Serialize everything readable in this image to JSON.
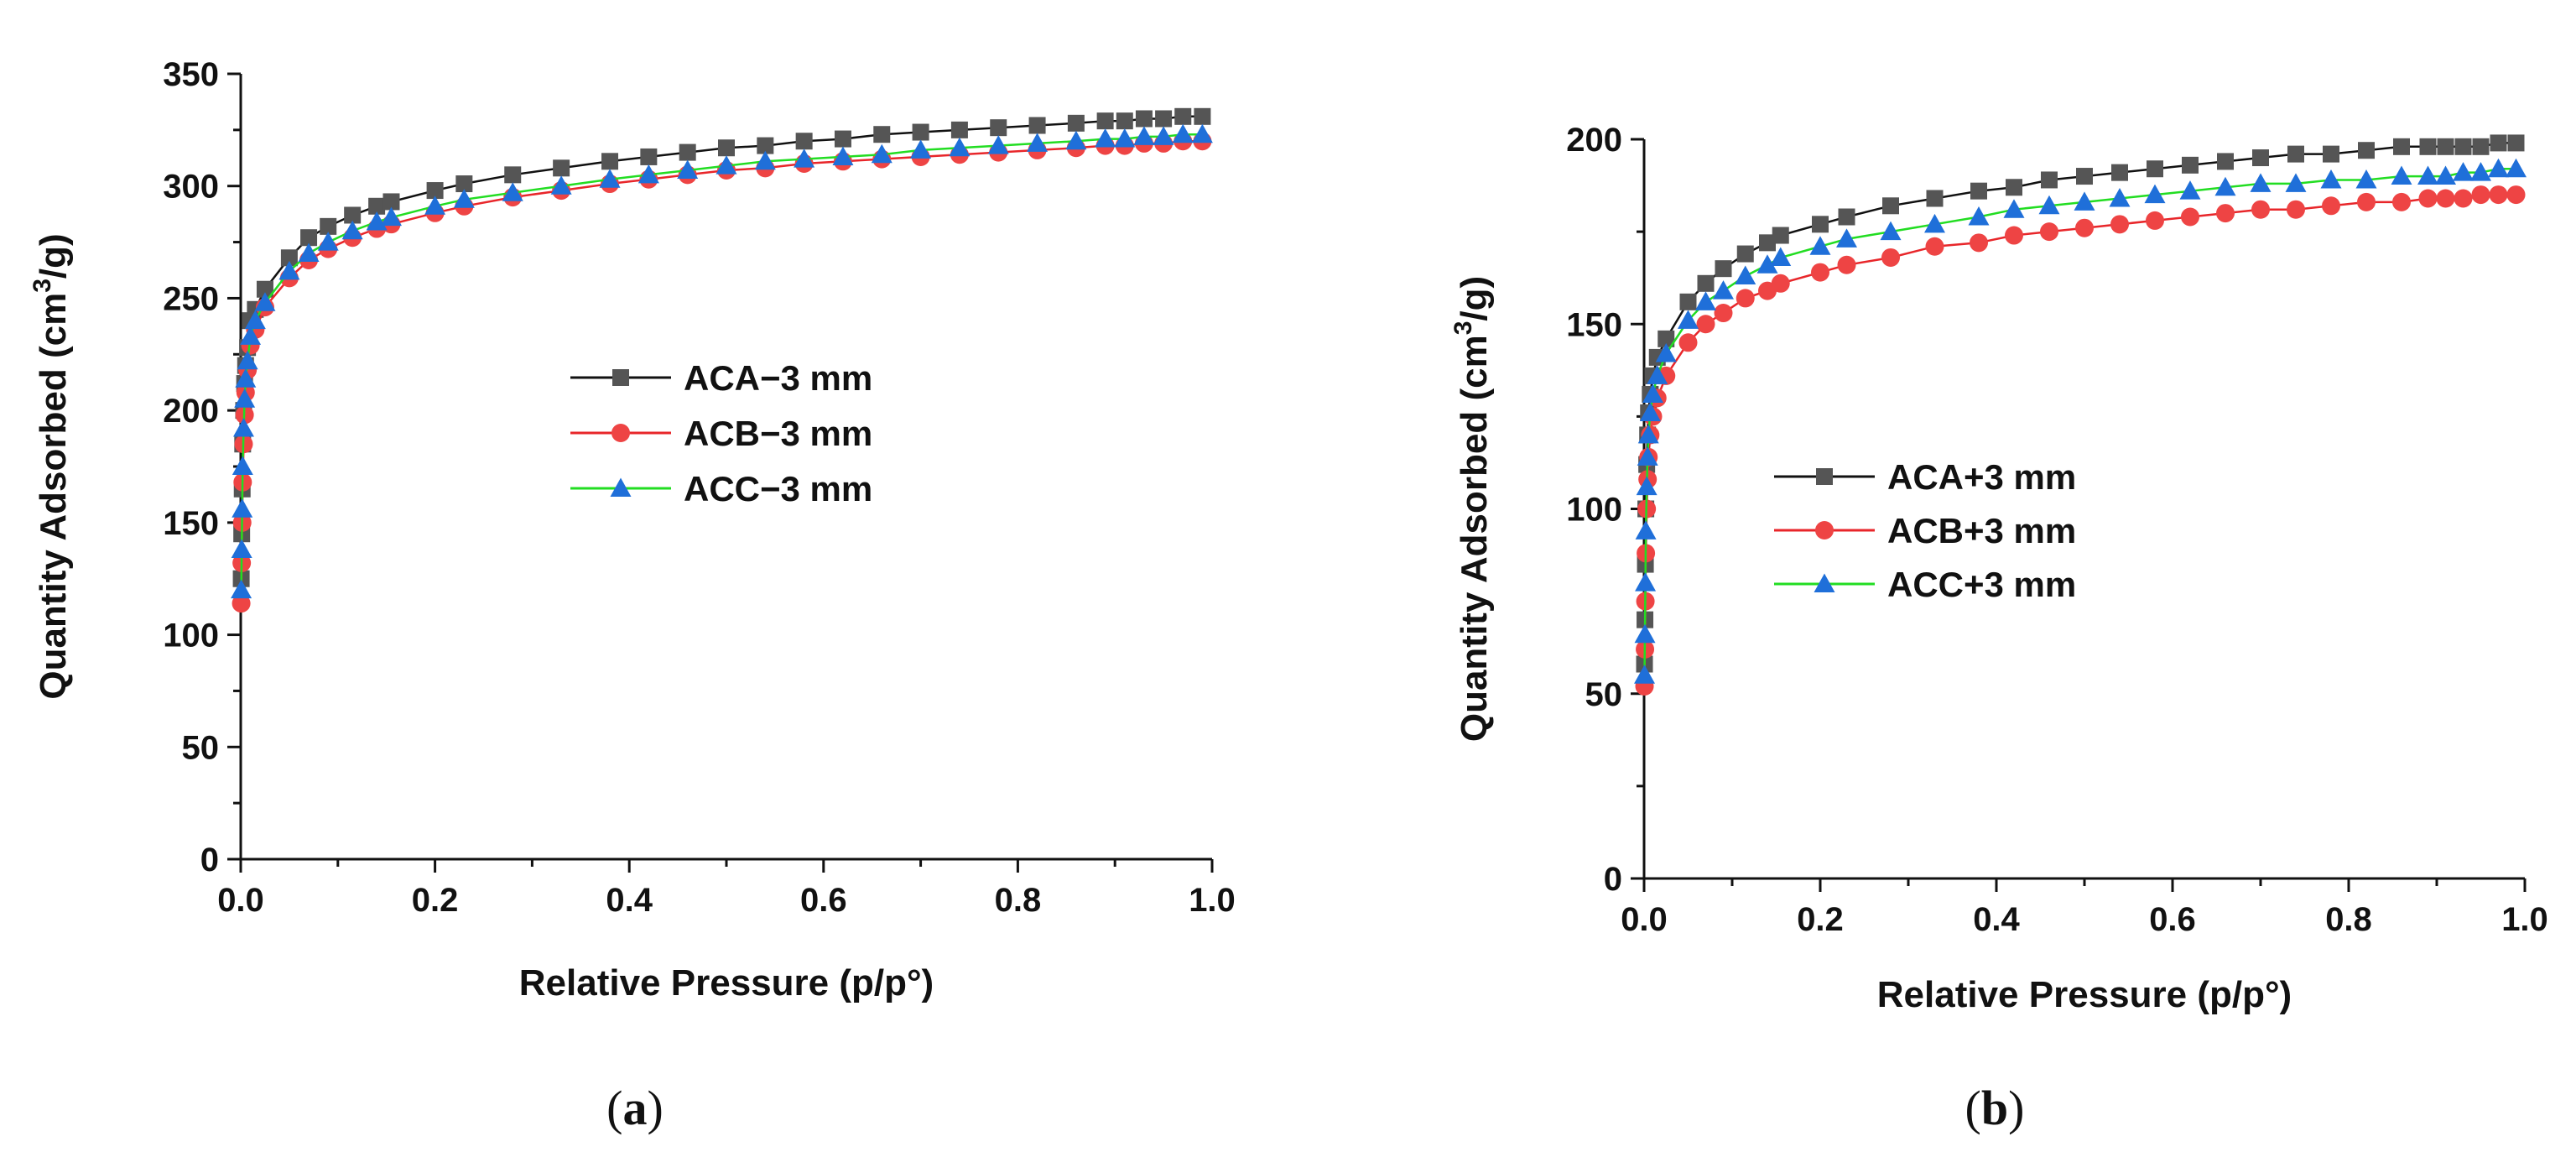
{
  "chart_data": [
    {
      "type": "line",
      "panel_label": "a",
      "xlabel": "Relative Pressure (p/p°)",
      "ylabel_prefix": "Quantity Adsorbed (cm",
      "ylabel_sup": "3",
      "ylabel_suffix": "/g)",
      "xlim": [
        0,
        1.0
      ],
      "ylim": [
        0,
        350
      ],
      "xticks": [
        0.0,
        0.2,
        0.4,
        0.6,
        0.8,
        1.0
      ],
      "xtick_labels": [
        "0.0",
        "0.2",
        "0.4",
        "0.6",
        "0.8",
        "1.0"
      ],
      "yticks": [
        0,
        50,
        100,
        150,
        200,
        250,
        300,
        350
      ],
      "ytick_labels": [
        "0",
        "50",
        "100",
        "150",
        "200",
        "250",
        "300",
        "350"
      ],
      "legend": "center",
      "series": [
        {
          "name": "ACA−3 mm",
          "marker": "square",
          "line_color": "#111111",
          "marker_color": "#555555",
          "x": [
            0.0005,
            0.001,
            0.0015,
            0.002,
            0.003,
            0.004,
            0.005,
            0.007,
            0.01,
            0.015,
            0.025,
            0.05,
            0.07,
            0.09,
            0.115,
            0.14,
            0.155,
            0.2,
            0.23,
            0.28,
            0.33,
            0.38,
            0.42,
            0.46,
            0.5,
            0.54,
            0.58,
            0.62,
            0.66,
            0.7,
            0.74,
            0.78,
            0.82,
            0.86,
            0.89,
            0.91,
            0.93,
            0.95,
            0.97,
            0.99
          ],
          "y": [
            125,
            145,
            165,
            185,
            200,
            212,
            220,
            228,
            240,
            245,
            254,
            268,
            277,
            282,
            287,
            291,
            293,
            298,
            301,
            305,
            308,
            311,
            313,
            315,
            317,
            318,
            320,
            321,
            323,
            324,
            325,
            326,
            327,
            328,
            329,
            329,
            330,
            330,
            331,
            331
          ]
        },
        {
          "name": "ACB−3 mm",
          "marker": "circle",
          "line_color": "#e8262a",
          "marker_color": "#ee4444",
          "x": [
            0.0005,
            0.001,
            0.0015,
            0.002,
            0.003,
            0.004,
            0.005,
            0.007,
            0.01,
            0.015,
            0.025,
            0.05,
            0.07,
            0.09,
            0.115,
            0.14,
            0.155,
            0.2,
            0.23,
            0.28,
            0.33,
            0.38,
            0.42,
            0.46,
            0.5,
            0.54,
            0.58,
            0.62,
            0.66,
            0.7,
            0.74,
            0.78,
            0.82,
            0.86,
            0.89,
            0.91,
            0.93,
            0.95,
            0.97,
            0.99
          ],
          "y": [
            114,
            132,
            150,
            168,
            185,
            198,
            208,
            218,
            229,
            236,
            246,
            259,
            267,
            272,
            277,
            281,
            283,
            288,
            291,
            295,
            298,
            301,
            303,
            305,
            307,
            308,
            310,
            311,
            312,
            313,
            314,
            315,
            316,
            317,
            318,
            318,
            319,
            319,
            320,
            320
          ]
        },
        {
          "name": "ACC−3 mm",
          "marker": "triangle",
          "line_color": "#22dd22",
          "marker_color": "#1f6fd9",
          "x": [
            0.0005,
            0.001,
            0.0015,
            0.002,
            0.003,
            0.004,
            0.005,
            0.007,
            0.01,
            0.015,
            0.025,
            0.05,
            0.07,
            0.09,
            0.115,
            0.14,
            0.155,
            0.2,
            0.23,
            0.28,
            0.33,
            0.38,
            0.42,
            0.46,
            0.5,
            0.54,
            0.58,
            0.62,
            0.66,
            0.7,
            0.74,
            0.78,
            0.82,
            0.86,
            0.89,
            0.91,
            0.93,
            0.95,
            0.97,
            0.99
          ],
          "y": [
            120,
            138,
            156,
            175,
            192,
            205,
            214,
            222,
            233,
            240,
            248,
            262,
            270,
            275,
            280,
            284,
            286,
            291,
            294,
            297,
            300,
            303,
            305,
            307,
            309,
            311,
            312,
            313,
            314,
            316,
            317,
            318,
            319,
            320,
            321,
            321,
            322,
            322,
            323,
            323
          ]
        }
      ]
    },
    {
      "type": "line",
      "panel_label": "b",
      "xlabel": "Relative Pressure (p/p°)",
      "ylabel_prefix": "Quantity Adsorbed (cm",
      "ylabel_sup": "3",
      "ylabel_suffix": "/g)",
      "xlim": [
        0,
        1.0
      ],
      "ylim": [
        0,
        200
      ],
      "xticks": [
        0.0,
        0.2,
        0.4,
        0.6,
        0.8,
        1.0
      ],
      "xtick_labels": [
        "0.0",
        "0.2",
        "0.4",
        "0.6",
        "0.8",
        "1.0"
      ],
      "yticks": [
        0,
        50,
        100,
        150,
        200
      ],
      "ytick_labels": [
        "0",
        "50",
        "100",
        "150",
        "200"
      ],
      "legend": "center-left",
      "series": [
        {
          "name": "ACA+3 mm",
          "marker": "square",
          "line_color": "#111111",
          "marker_color": "#555555",
          "x": [
            0.0005,
            0.001,
            0.0015,
            0.002,
            0.003,
            0.004,
            0.005,
            0.007,
            0.01,
            0.015,
            0.025,
            0.05,
            0.07,
            0.09,
            0.115,
            0.14,
            0.155,
            0.2,
            0.23,
            0.28,
            0.33,
            0.38,
            0.42,
            0.46,
            0.5,
            0.54,
            0.58,
            0.62,
            0.66,
            0.7,
            0.74,
            0.78,
            0.82,
            0.86,
            0.89,
            0.91,
            0.93,
            0.95,
            0.97,
            0.99
          ],
          "y": [
            58,
            70,
            85,
            100,
            112,
            120,
            126,
            131,
            136,
            141,
            146,
            156,
            161,
            165,
            169,
            172,
            174,
            177,
            179,
            182,
            184,
            186,
            187,
            189,
            190,
            191,
            192,
            193,
            194,
            195,
            196,
            196,
            197,
            198,
            198,
            198,
            198,
            198,
            199,
            199
          ]
        },
        {
          "name": "ACB+3 mm",
          "marker": "circle",
          "line_color": "#e8262a",
          "marker_color": "#ee4444",
          "x": [
            0.0005,
            0.001,
            0.0015,
            0.002,
            0.003,
            0.004,
            0.005,
            0.007,
            0.01,
            0.015,
            0.025,
            0.05,
            0.07,
            0.09,
            0.115,
            0.14,
            0.155,
            0.2,
            0.23,
            0.28,
            0.33,
            0.38,
            0.42,
            0.46,
            0.5,
            0.54,
            0.58,
            0.62,
            0.66,
            0.7,
            0.74,
            0.78,
            0.82,
            0.86,
            0.89,
            0.91,
            0.93,
            0.95,
            0.97,
            0.99
          ],
          "y": [
            52,
            62,
            75,
            88,
            100,
            108,
            114,
            120,
            125,
            130,
            136,
            145,
            150,
            153,
            157,
            159,
            161,
            164,
            166,
            168,
            171,
            172,
            174,
            175,
            176,
            177,
            178,
            179,
            180,
            181,
            181,
            182,
            183,
            183,
            184,
            184,
            184,
            185,
            185,
            185
          ]
        },
        {
          "name": "ACC+3 mm",
          "marker": "triangle",
          "line_color": "#22dd22",
          "marker_color": "#1f6fd9",
          "x": [
            0.0005,
            0.001,
            0.0015,
            0.002,
            0.003,
            0.004,
            0.005,
            0.007,
            0.01,
            0.015,
            0.025,
            0.05,
            0.07,
            0.09,
            0.115,
            0.14,
            0.155,
            0.2,
            0.23,
            0.28,
            0.33,
            0.38,
            0.42,
            0.46,
            0.5,
            0.54,
            0.58,
            0.62,
            0.66,
            0.7,
            0.74,
            0.78,
            0.82,
            0.86,
            0.89,
            0.91,
            0.93,
            0.95,
            0.97,
            0.99
          ],
          "y": [
            55,
            66,
            80,
            94,
            106,
            114,
            120,
            126,
            131,
            136,
            142,
            151,
            156,
            159,
            163,
            166,
            168,
            171,
            173,
            175,
            177,
            179,
            181,
            182,
            183,
            184,
            185,
            186,
            187,
            188,
            188,
            189,
            189,
            190,
            190,
            190,
            191,
            191,
            192,
            192
          ]
        }
      ]
    }
  ]
}
